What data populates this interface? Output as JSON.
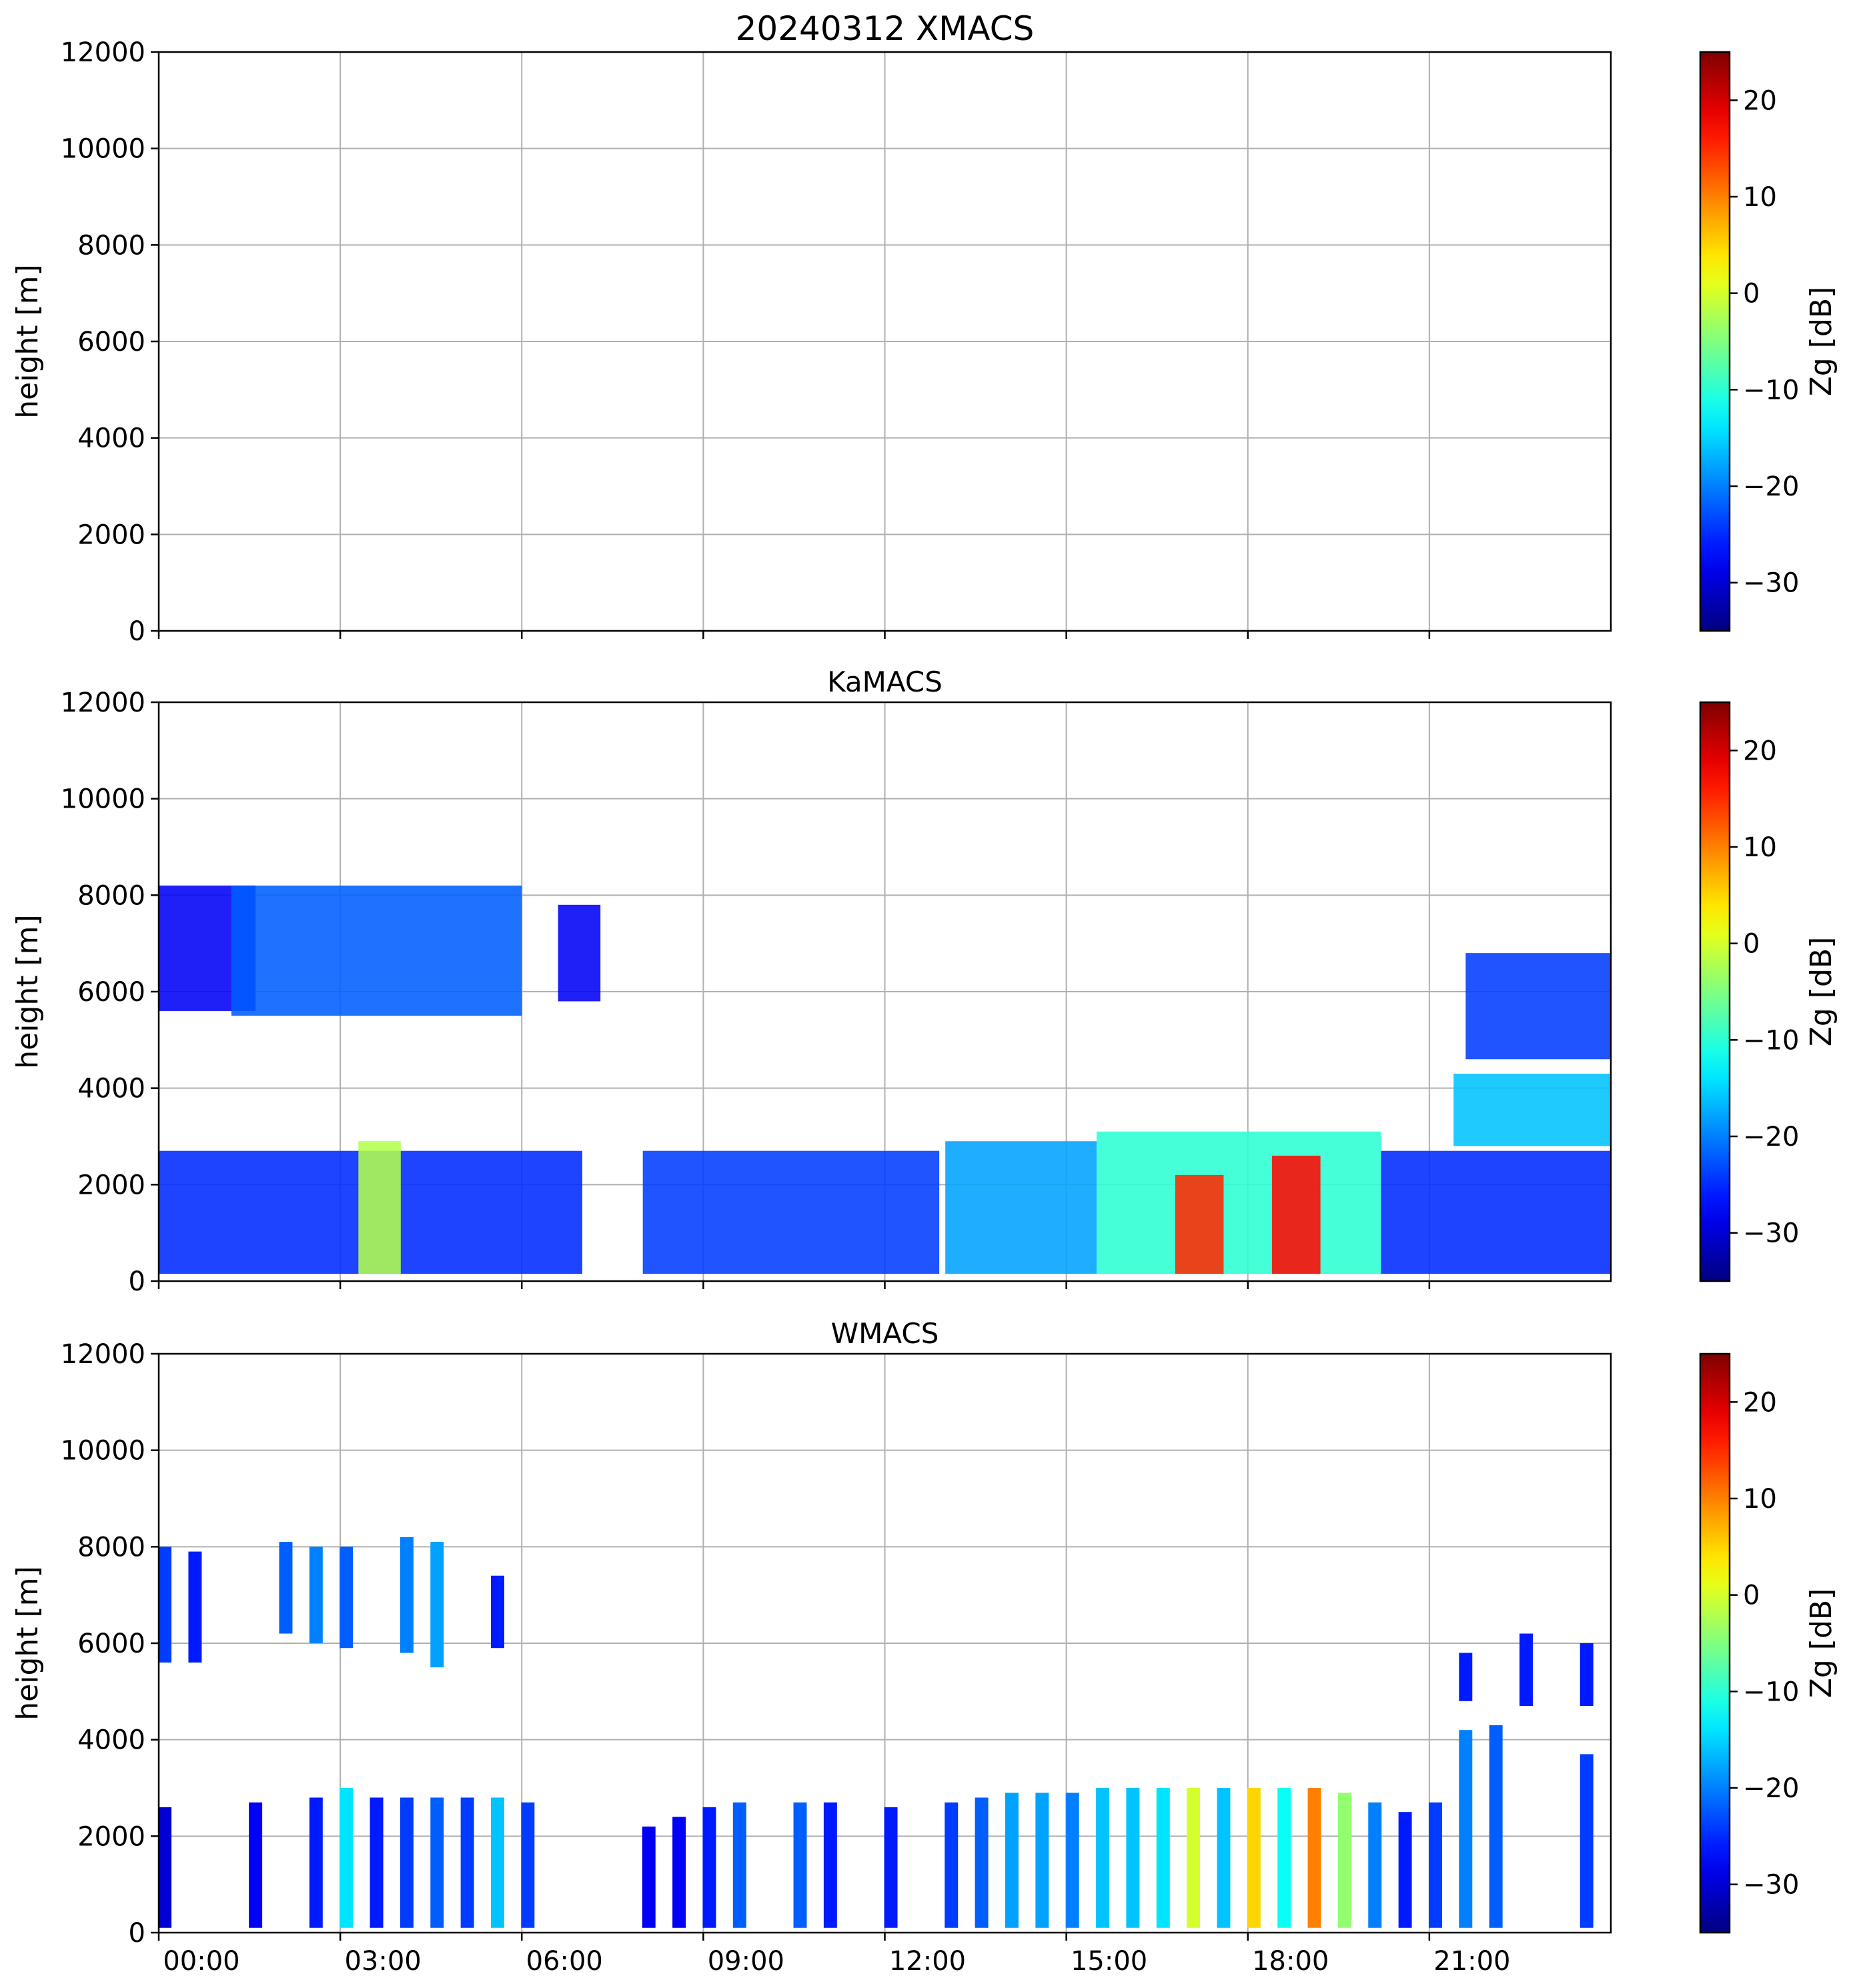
{
  "chart_data": [
    {
      "type": "heatmap",
      "title": "20240312 XMACS",
      "xlabel": "",
      "ylabel": "height [m]",
      "xlim": [
        0,
        24
      ],
      "ylim": [
        0,
        12000
      ],
      "grid": true,
      "xticks": [
        0,
        3,
        6,
        9,
        12,
        15,
        18,
        21
      ],
      "xtick_labels": [
        "00:00",
        "03:00",
        "06:00",
        "09:00",
        "12:00",
        "15:00",
        "18:00",
        "21:00"
      ],
      "show_xtick_labels": false,
      "yticks": [
        0,
        2000,
        4000,
        6000,
        8000,
        10000,
        12000
      ],
      "ytick_labels": [
        "0",
        "2000",
        "4000",
        "6000",
        "8000",
        "10000",
        "12000"
      ],
      "colorbar": {
        "label": "Zg [dB]",
        "range": [
          -35,
          25
        ],
        "ticks": [
          20,
          10,
          0,
          -10,
          -20,
          -30
        ],
        "tick_labels": [
          "20",
          "10",
          "0",
          "−10",
          "−20",
          "−30"
        ],
        "colormap": "jet"
      },
      "regions": []
    },
    {
      "type": "heatmap",
      "title": "KaMACS",
      "xlabel": "",
      "ylabel": "height [m]",
      "xlim": [
        0,
        24
      ],
      "ylim": [
        0,
        12000
      ],
      "grid": true,
      "xticks": [
        0,
        3,
        6,
        9,
        12,
        15,
        18,
        21
      ],
      "xtick_labels": [
        "00:00",
        "03:00",
        "06:00",
        "09:00",
        "12:00",
        "15:00",
        "18:00",
        "21:00"
      ],
      "show_xtick_labels": false,
      "yticks": [
        0,
        2000,
        4000,
        6000,
        8000,
        10000,
        12000
      ],
      "ytick_labels": [
        "0",
        "2000",
        "4000",
        "6000",
        "8000",
        "10000",
        "12000"
      ],
      "colorbar": {
        "label": "Zg [dB]",
        "range": [
          -35,
          25
        ],
        "ticks": [
          20,
          10,
          0,
          -10,
          -20,
          -30
        ],
        "tick_labels": [
          "20",
          "10",
          "0",
          "−10",
          "−20",
          "−30"
        ],
        "colormap": "jet"
      },
      "regions": [
        {
          "name": "upper-cloud-a",
          "t0": 0.0,
          "t1": 1.6,
          "h0": 5600,
          "h1": 8200,
          "dbz": -28
        },
        {
          "name": "upper-cloud-b",
          "t0": 1.2,
          "t1": 6.0,
          "h0": 5500,
          "h1": 8200,
          "dbz": -22
        },
        {
          "name": "upper-cloud-c",
          "t0": 6.6,
          "t1": 7.3,
          "h0": 5800,
          "h1": 7800,
          "dbz": -28
        },
        {
          "name": "lower-cloud-a",
          "t0": 0.0,
          "t1": 7.0,
          "h0": 150,
          "h1": 2700,
          "dbz": -25
        },
        {
          "name": "lower-core-a",
          "t0": 3.3,
          "t1": 4.0,
          "h0": 150,
          "h1": 2900,
          "dbz": -2
        },
        {
          "name": "lower-cloud-b",
          "t0": 8.0,
          "t1": 12.9,
          "h0": 150,
          "h1": 2700,
          "dbz": -24
        },
        {
          "name": "lower-cloud-c",
          "t0": 13.0,
          "t1": 15.5,
          "h0": 150,
          "h1": 2900,
          "dbz": -18
        },
        {
          "name": "lower-cloud-d",
          "t0": 15.5,
          "t1": 20.2,
          "h0": 150,
          "h1": 3100,
          "dbz": -10
        },
        {
          "name": "lower-core-b",
          "t0": 16.8,
          "t1": 17.6,
          "h0": 150,
          "h1": 2200,
          "dbz": 15
        },
        {
          "name": "lower-core-c",
          "t0": 18.4,
          "t1": 19.2,
          "h0": 150,
          "h1": 2600,
          "dbz": 17
        },
        {
          "name": "lower-cloud-e",
          "t0": 20.2,
          "t1": 24.0,
          "h0": 150,
          "h1": 2700,
          "dbz": -25
        },
        {
          "name": "mid-cloud",
          "t0": 21.4,
          "t1": 24.0,
          "h0": 2800,
          "h1": 4300,
          "dbz": -16
        },
        {
          "name": "upper-cloud-d",
          "t0": 21.6,
          "t1": 24.0,
          "h0": 4600,
          "h1": 6800,
          "dbz": -24
        }
      ]
    },
    {
      "type": "heatmap",
      "title": "WMACS",
      "xlabel": "",
      "ylabel": "height [m]",
      "xlim": [
        0,
        24
      ],
      "ylim": [
        0,
        12000
      ],
      "grid": true,
      "xticks": [
        0,
        3,
        6,
        9,
        12,
        15,
        18,
        21
      ],
      "xtick_labels": [
        "00:00",
        "03:00",
        "06:00",
        "09:00",
        "12:00",
        "15:00",
        "18:00",
        "21:00"
      ],
      "show_xtick_labels": true,
      "yticks": [
        0,
        2000,
        4000,
        6000,
        8000,
        10000,
        12000
      ],
      "ytick_labels": [
        "0",
        "2000",
        "4000",
        "6000",
        "8000",
        "10000",
        "12000"
      ],
      "colorbar": {
        "label": "Zg [dB]",
        "range": [
          -35,
          25
        ],
        "ticks": [
          20,
          10,
          0,
          -10,
          -20,
          -30
        ],
        "tick_labels": [
          "20",
          "10",
          "0",
          "−10",
          "−20",
          "−30"
        ],
        "colormap": "jet"
      },
      "strip_width_hours": 0.22,
      "strips": [
        {
          "t": 0.1,
          "h0": 5600,
          "h1": 8000,
          "dbz": -24
        },
        {
          "t": 0.6,
          "h0": 5600,
          "h1": 7900,
          "dbz": -26
        },
        {
          "t": 2.1,
          "h0": 6200,
          "h1": 8100,
          "dbz": -22
        },
        {
          "t": 2.6,
          "h0": 6000,
          "h1": 8000,
          "dbz": -20
        },
        {
          "t": 3.1,
          "h0": 5900,
          "h1": 8000,
          "dbz": -22
        },
        {
          "t": 4.1,
          "h0": 5800,
          "h1": 8200,
          "dbz": -20
        },
        {
          "t": 4.6,
          "h0": 5500,
          "h1": 8100,
          "dbz": -18
        },
        {
          "t": 5.6,
          "h0": 5900,
          "h1": 7400,
          "dbz": -26
        },
        {
          "t": 0.1,
          "h0": 100,
          "h1": 2600,
          "dbz": -30
        },
        {
          "t": 1.6,
          "h0": 100,
          "h1": 2700,
          "dbz": -28
        },
        {
          "t": 2.6,
          "h0": 100,
          "h1": 2800,
          "dbz": -26
        },
        {
          "t": 3.1,
          "h0": 100,
          "h1": 3000,
          "dbz": -14
        },
        {
          "t": 3.6,
          "h0": 100,
          "h1": 2800,
          "dbz": -26
        },
        {
          "t": 4.1,
          "h0": 100,
          "h1": 2800,
          "dbz": -24
        },
        {
          "t": 4.6,
          "h0": 100,
          "h1": 2800,
          "dbz": -22
        },
        {
          "t": 5.1,
          "h0": 100,
          "h1": 2800,
          "dbz": -24
        },
        {
          "t": 5.6,
          "h0": 100,
          "h1": 2800,
          "dbz": -16
        },
        {
          "t": 6.1,
          "h0": 100,
          "h1": 2700,
          "dbz": -24
        },
        {
          "t": 8.1,
          "h0": 100,
          "h1": 2200,
          "dbz": -28
        },
        {
          "t": 8.6,
          "h0": 100,
          "h1": 2400,
          "dbz": -28
        },
        {
          "t": 9.1,
          "h0": 100,
          "h1": 2600,
          "dbz": -26
        },
        {
          "t": 9.6,
          "h0": 100,
          "h1": 2700,
          "dbz": -22
        },
        {
          "t": 10.6,
          "h0": 100,
          "h1": 2700,
          "dbz": -22
        },
        {
          "t": 11.1,
          "h0": 100,
          "h1": 2700,
          "dbz": -26
        },
        {
          "t": 12.1,
          "h0": 100,
          "h1": 2600,
          "dbz": -26
        },
        {
          "t": 13.1,
          "h0": 100,
          "h1": 2700,
          "dbz": -24
        },
        {
          "t": 13.6,
          "h0": 100,
          "h1": 2800,
          "dbz": -22
        },
        {
          "t": 14.1,
          "h0": 100,
          "h1": 2900,
          "dbz": -18
        },
        {
          "t": 14.6,
          "h0": 100,
          "h1": 2900,
          "dbz": -18
        },
        {
          "t": 15.1,
          "h0": 100,
          "h1": 2900,
          "dbz": -20
        },
        {
          "t": 15.6,
          "h0": 100,
          "h1": 3000,
          "dbz": -16
        },
        {
          "t": 16.1,
          "h0": 100,
          "h1": 3000,
          "dbz": -16
        },
        {
          "t": 16.6,
          "h0": 100,
          "h1": 3000,
          "dbz": -14
        },
        {
          "t": 17.1,
          "h0": 100,
          "h1": 3000,
          "dbz": 0
        },
        {
          "t": 17.6,
          "h0": 100,
          "h1": 3000,
          "dbz": -16
        },
        {
          "t": 18.1,
          "h0": 100,
          "h1": 3000,
          "dbz": 5
        },
        {
          "t": 18.6,
          "h0": 100,
          "h1": 3000,
          "dbz": -12
        },
        {
          "t": 19.1,
          "h0": 100,
          "h1": 3000,
          "dbz": 10
        },
        {
          "t": 19.6,
          "h0": 100,
          "h1": 2900,
          "dbz": -4
        },
        {
          "t": 20.1,
          "h0": 100,
          "h1": 2700,
          "dbz": -20
        },
        {
          "t": 20.6,
          "h0": 100,
          "h1": 2500,
          "dbz": -26
        },
        {
          "t": 21.1,
          "h0": 100,
          "h1": 2700,
          "dbz": -24
        },
        {
          "t": 21.6,
          "h0": 100,
          "h1": 4200,
          "dbz": -20
        },
        {
          "t": 22.1,
          "h0": 100,
          "h1": 4300,
          "dbz": -22
        },
        {
          "t": 23.6,
          "h0": 100,
          "h1": 3700,
          "dbz": -24
        },
        {
          "t": 21.6,
          "h0": 4800,
          "h1": 5800,
          "dbz": -26
        },
        {
          "t": 22.6,
          "h0": 4700,
          "h1": 6200,
          "dbz": -26
        },
        {
          "t": 23.6,
          "h0": 4700,
          "h1": 6000,
          "dbz": -26
        }
      ]
    }
  ]
}
